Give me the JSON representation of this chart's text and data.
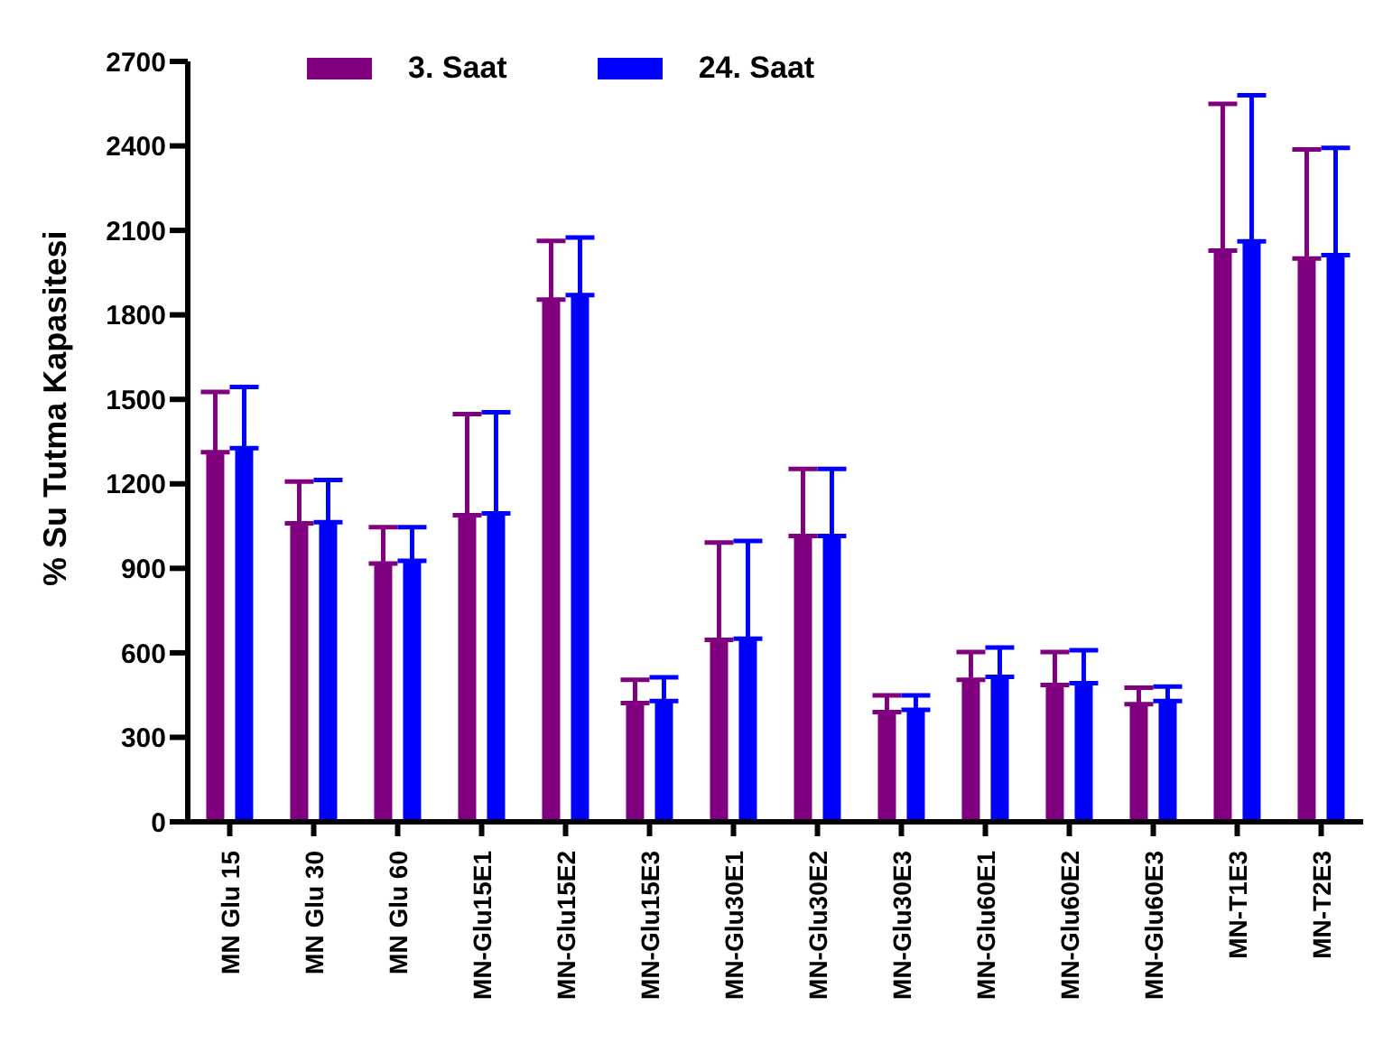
{
  "chart_data": {
    "type": "bar",
    "ylabel": "% Su Tutma Kapasitesi",
    "categories": [
      "MN Glu 15",
      "MN Glu 30",
      "MN Glu 60",
      "MN-Glu15E1",
      "MN-Glu15E2",
      "MN-Glu15E3",
      "MN-Glu30E1",
      "MN-Glu30E2",
      "MN-Glu30E3",
      "MN-Glu60E1",
      "MN-Glu60E2",
      "MN-Glu60E3",
      "MN-T1E3",
      "MN-T2E3"
    ],
    "series": [
      {
        "name": "3. Saat",
        "color": "#800080",
        "values": [
          1312,
          1060,
          917,
          1089,
          1854,
          422,
          646,
          1015,
          390,
          504,
          486,
          418,
          2028,
          2000
        ],
        "errors": [
          [
            1312,
            1526
          ],
          [
            1060,
            1208
          ],
          [
            917,
            1046
          ],
          [
            1089,
            1448
          ],
          [
            1854,
            2063
          ],
          [
            422,
            504
          ],
          [
            646,
            992
          ],
          [
            1015,
            1253
          ],
          [
            390,
            449
          ],
          [
            504,
            603
          ],
          [
            486,
            603
          ],
          [
            418,
            476
          ],
          [
            2028,
            2549
          ],
          [
            2000,
            2387
          ]
        ]
      },
      {
        "name": "24. Saat",
        "color": "#0000ff",
        "values": [
          1327,
          1064,
          927,
          1095,
          1870,
          429,
          650,
          1015,
          398,
          515,
          492,
          429,
          2061,
          2012
        ],
        "errors": [
          [
            1327,
            1544
          ],
          [
            1064,
            1214
          ],
          [
            927,
            1046
          ],
          [
            1095,
            1454
          ],
          [
            1870,
            2075
          ],
          [
            429,
            513
          ],
          [
            650,
            997
          ],
          [
            1015,
            1253
          ],
          [
            398,
            449
          ],
          [
            515,
            619
          ],
          [
            492,
            609
          ],
          [
            429,
            480
          ],
          [
            2061,
            2580
          ],
          [
            2012,
            2393
          ]
        ]
      }
    ],
    "ylim": [
      0,
      2700
    ],
    "yticks": [
      0,
      300,
      600,
      900,
      1200,
      1500,
      1800,
      2100,
      2400,
      2700
    ],
    "grid": false,
    "legend": "top"
  }
}
